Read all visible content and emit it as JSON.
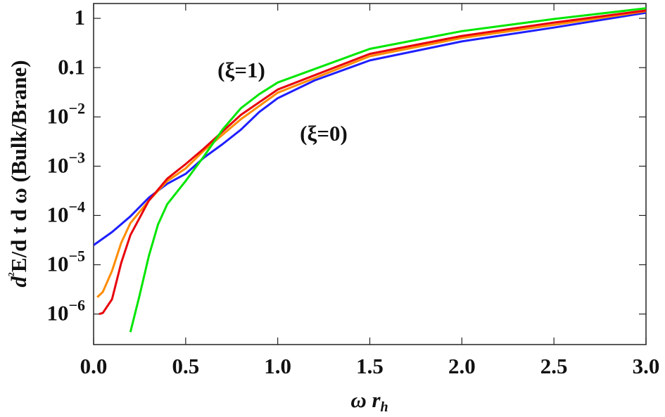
{
  "chart_data": {
    "type": "line",
    "x_label": "ω rh",
    "y_label": "d²E/d t d ω (Bulk/Brane)",
    "annotations": [
      "(ξ=1)",
      "(ξ=0)"
    ],
    "log_y": true,
    "xlim": [
      0,
      3
    ],
    "ylim": [
      2.4e-07,
      2
    ],
    "xticks": [
      {
        "value": 0,
        "label": "0.0"
      },
      0.5,
      {
        "value": 1,
        "label": "1.0"
      },
      1.5,
      {
        "value": 2,
        "label": "2.0"
      },
      2.5,
      {
        "value": 3,
        "label": "3.0"
      }
    ],
    "yticks": [
      {
        "value": 1e-06,
        "label": "10−6"
      },
      {
        "value": 1e-05,
        "label": "10−5"
      },
      {
        "value": 0.0001,
        "label": "10−4"
      },
      {
        "value": 0.001,
        "label": "10−3"
      },
      {
        "value": 0.01,
        "label": "10−2"
      },
      0.1,
      1
    ],
    "series": [
      {
        "color": "#1f1fff",
        "x": [
          0,
          0.1,
          0.2,
          0.3,
          0.4,
          0.5,
          0.6,
          0.7,
          0.8,
          0.9,
          1.0,
          1.2,
          1.5,
          2.0,
          2.5,
          3.0
        ],
        "values": [
          2.5e-05,
          4.6e-05,
          9.6e-05,
          0.00023,
          0.00044,
          0.0007,
          0.0015,
          0.0028,
          0.0055,
          0.0126,
          0.024,
          0.055,
          0.14,
          0.34,
          0.65,
          1.3
        ]
      },
      {
        "color": "#ff8c00",
        "x": [
          0.02,
          0.05,
          0.1,
          0.15,
          0.2,
          0.3,
          0.4,
          0.5,
          0.6,
          0.8,
          1.0,
          1.5,
          2.0,
          2.5,
          3.0
        ],
        "values": [
          2.2e-06,
          2.8e-06,
          7.5e-06,
          2.8e-05,
          7e-05,
          0.0002,
          0.0005,
          0.0009,
          0.0021,
          0.009,
          0.031,
          0.17,
          0.4,
          0.74,
          1.4
        ]
      },
      {
        "color": "#e8000b",
        "x": [
          0.03,
          0.05,
          0.1,
          0.15,
          0.2,
          0.3,
          0.4,
          0.5,
          0.6,
          0.8,
          1.0,
          1.5,
          2.0,
          2.5,
          3.0
        ],
        "values": [
          1e-06,
          1.05e-06,
          2e-06,
          1.1e-05,
          4e-05,
          0.0002,
          0.00056,
          0.0011,
          0.0023,
          0.011,
          0.036,
          0.19,
          0.44,
          0.82,
          1.45
        ]
      },
      {
        "color": "#00e600",
        "x": [
          0.2,
          0.25,
          0.3,
          0.35,
          0.4,
          0.5,
          0.6,
          0.7,
          0.8,
          0.9,
          1.0,
          1.5,
          2.0,
          2.5,
          3.0
        ],
        "values": [
          4.3e-07,
          2.4e-06,
          1.5e-05,
          6.6e-05,
          0.00017,
          0.0005,
          0.0016,
          0.0055,
          0.015,
          0.029,
          0.05,
          0.24,
          0.55,
          0.97,
          1.6
        ]
      }
    ]
  }
}
